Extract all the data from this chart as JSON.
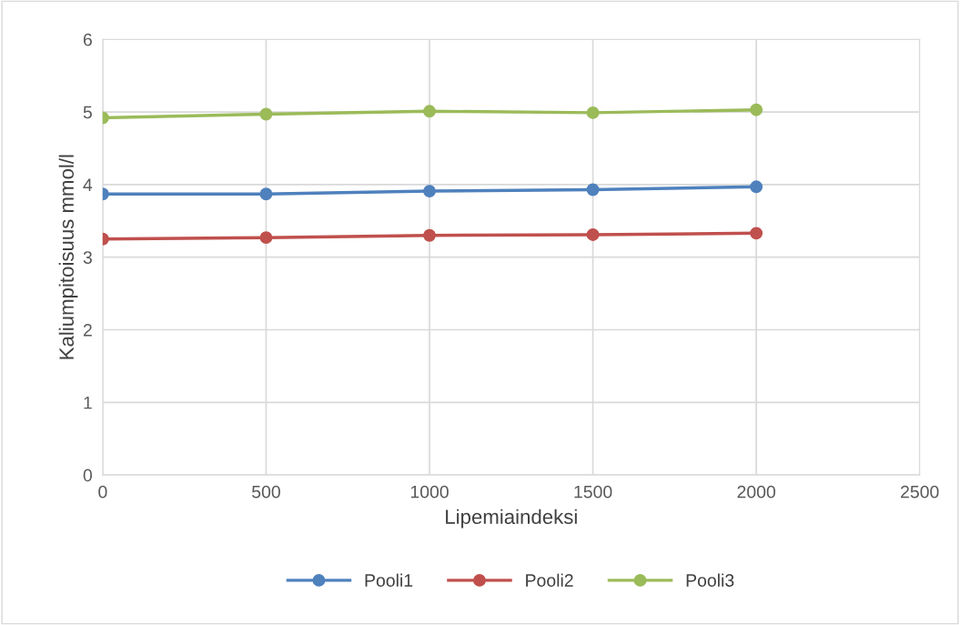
{
  "chart_data": {
    "type": "line",
    "xlabel": "Lipemiaindeksi",
    "ylabel": "Kaliumpitoisuus mmol/l",
    "x": [
      0,
      500,
      1000,
      1500,
      2000
    ],
    "series": [
      {
        "name": "Pooli1",
        "color": "#4f81bd",
        "values": [
          3.87,
          3.87,
          3.91,
          3.93,
          3.97
        ]
      },
      {
        "name": "Pooli2",
        "color": "#c0504d",
        "values": [
          3.25,
          3.27,
          3.3,
          3.31,
          3.33
        ]
      },
      {
        "name": "Pooli3",
        "color": "#9bbb59",
        "values": [
          4.92,
          4.97,
          5.01,
          4.99,
          5.03
        ]
      }
    ],
    "xlim": [
      0,
      2500
    ],
    "xticks": [
      0,
      500,
      1000,
      1500,
      2000,
      2500
    ],
    "ylim": [
      0,
      6
    ],
    "yticks": [
      0,
      1,
      2,
      3,
      4,
      5,
      6
    ],
    "grid": true,
    "legend": "bottom",
    "marker": "circle",
    "line_style": "solid"
  }
}
